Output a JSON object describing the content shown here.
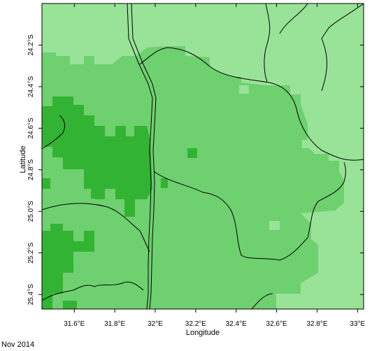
{
  "map": {
    "x_axis_title": "Longitude",
    "y_axis_title": "Latitude",
    "date_label": "Nov 2014",
    "lon_range": [
      31.44,
      33.03
    ],
    "lat_range": [
      -25.47,
      -24.0
    ],
    "x_ticks": [
      {
        "value": 31.6,
        "label": "31.6°E"
      },
      {
        "value": 31.8,
        "label": "31.8°E"
      },
      {
        "value": 32.0,
        "label": "32°E"
      },
      {
        "value": 32.2,
        "label": "32.2°E"
      },
      {
        "value": 32.4,
        "label": "32.4°E"
      },
      {
        "value": 32.6,
        "label": "32.6°E"
      },
      {
        "value": 32.8,
        "label": "32.8°E"
      },
      {
        "value": 33.0,
        "label": "33°E"
      }
    ],
    "y_ticks": [
      {
        "value": -24.2,
        "label": "24.2°S"
      },
      {
        "value": -24.4,
        "label": "24.4°S"
      },
      {
        "value": -24.6,
        "label": "24.6°S"
      },
      {
        "value": -24.8,
        "label": "24.8°S"
      },
      {
        "value": -25.0,
        "label": "25.0°S"
      },
      {
        "value": -25.2,
        "label": "25.2°S"
      },
      {
        "value": -25.4,
        "label": "25.4°S"
      }
    ],
    "colors": {
      "level1": "#99e399",
      "level2": "#6fd06f",
      "level3": "#33b333",
      "boundary": "#000000"
    }
  }
}
